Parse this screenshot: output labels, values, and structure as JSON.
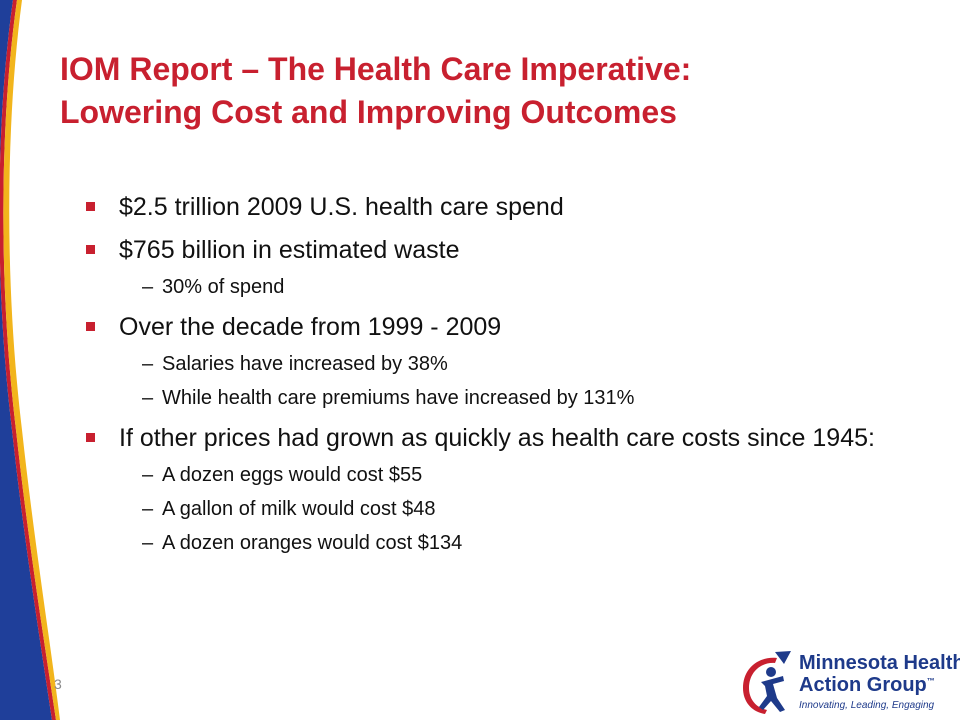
{
  "slide": {
    "title_lines": [
      "IOM Report – The Health Care Imperative:",
      "Lowering Cost and Improving Outcomes"
    ],
    "bullets": [
      {
        "text": "$2.5 trillion 2009 U.S. health care spend",
        "subs": []
      },
      {
        "text": "$765 billion in estimated waste",
        "subs": [
          "30% of spend"
        ]
      },
      {
        "text": "Over the decade from 1999 - 2009",
        "subs": [
          "Salaries have increased by 38%",
          "While health care premiums have increased by 131%"
        ]
      },
      {
        "text": "If other prices had grown as quickly as health care costs since 1945:",
        "subs": [
          "A dozen eggs would cost $55",
          "A gallon of milk would cost $48",
          "A dozen oranges would cost $134"
        ]
      }
    ],
    "sub_marker": "–",
    "page_number": "3"
  },
  "logo": {
    "line1": "Minnesota Health",
    "line2": "Action Group",
    "trademark": "™",
    "tagline": "Innovating, Leading, Engaging"
  },
  "colors": {
    "title": "#c8202f",
    "bullet": "#c8202f",
    "swoosh_blue": "#1f3f9a",
    "swoosh_red": "#c8202f",
    "swoosh_yellow": "#f2b51c",
    "logo_blue": "#1e3a8a"
  }
}
